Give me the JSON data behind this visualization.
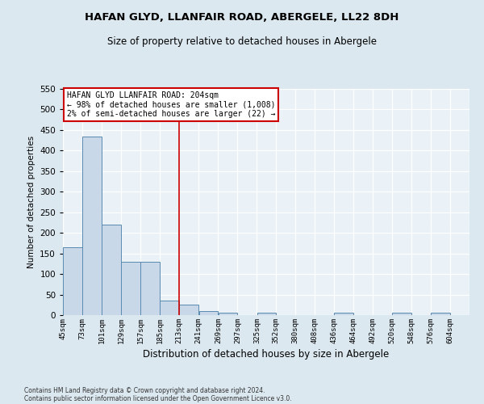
{
  "title1": "HAFAN GLYD, LLANFAIR ROAD, ABERGELE, LL22 8DH",
  "title2": "Size of property relative to detached houses in Abergele",
  "xlabel": "Distribution of detached houses by size in Abergele",
  "ylabel": "Number of detached properties",
  "footer1": "Contains HM Land Registry data © Crown copyright and database right 2024.",
  "footer2": "Contains public sector information licensed under the Open Government Licence v3.0.",
  "bins": [
    45,
    73,
    101,
    129,
    157,
    185,
    213,
    241,
    269,
    297,
    325,
    352,
    380,
    408,
    436,
    464,
    492,
    520,
    548,
    576,
    604
  ],
  "bin_labels": [
    "45sqm",
    "73sqm",
    "101sqm",
    "129sqm",
    "157sqm",
    "185sqm",
    "213sqm",
    "241sqm",
    "269sqm",
    "297sqm",
    "325sqm",
    "352sqm",
    "380sqm",
    "408sqm",
    "436sqm",
    "464sqm",
    "492sqm",
    "520sqm",
    "548sqm",
    "576sqm",
    "604sqm"
  ],
  "values": [
    165,
    435,
    220,
    130,
    130,
    35,
    25,
    10,
    5,
    0,
    5,
    0,
    0,
    0,
    5,
    0,
    0,
    5,
    0,
    5,
    0
  ],
  "bar_color": "#c8d8e8",
  "bar_edge_color": "#5a8ab0",
  "property_line_x": 213,
  "property_line_color": "#cc0000",
  "ylim": [
    0,
    550
  ],
  "yticks": [
    0,
    50,
    100,
    150,
    200,
    250,
    300,
    350,
    400,
    450,
    500,
    550
  ],
  "annotation_title": "HAFAN GLYD LLANFAIR ROAD: 204sqm",
  "annotation_line1": "← 98% of detached houses are smaller (1,008)",
  "annotation_line2": "2% of semi-detached houses are larger (22) →",
  "background_color": "#dce8f0",
  "plot_bg_color": "#eaf2f8",
  "title1_fontsize": 9.5,
  "title2_fontsize": 8.5
}
